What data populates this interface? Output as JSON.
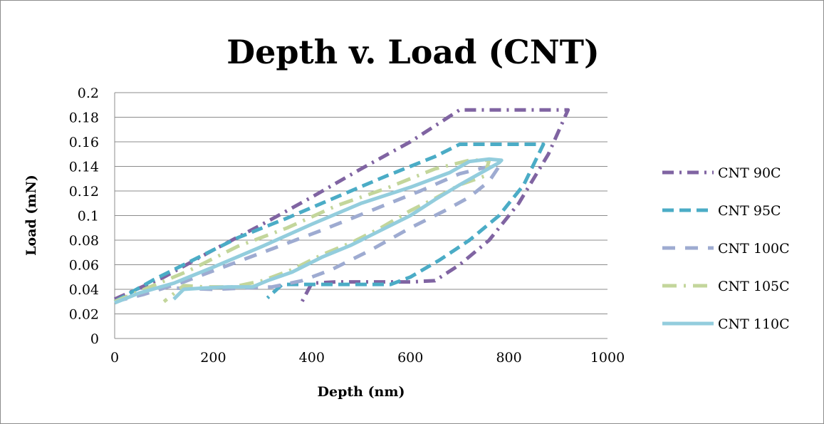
{
  "chart_data": {
    "type": "line",
    "title": "Depth v. Load (CNT)",
    "xlabel": "Depth (nm)",
    "ylabel": "Load (mN)",
    "xlim": [
      0,
      1000
    ],
    "ylim": [
      0,
      0.2
    ],
    "xticks": [
      "0",
      "200",
      "400",
      "600",
      "800",
      "1000"
    ],
    "yticks": [
      "0",
      "0.02",
      "0.04",
      "0.06",
      "0.08",
      "0.1",
      "0.12",
      "0.14",
      "0.16",
      "0.18",
      "0.2"
    ],
    "grid": "horizontal",
    "legend_position": "right",
    "series": [
      {
        "name": "CNT 90C",
        "color": "#8064a2",
        "dash": "dash-dot",
        "points": [
          [
            0,
            0.032
          ],
          [
            100,
            0.05
          ],
          [
            200,
            0.072
          ],
          [
            300,
            0.093
          ],
          [
            400,
            0.115
          ],
          [
            500,
            0.138
          ],
          [
            600,
            0.16
          ],
          [
            700,
            0.186
          ],
          [
            760,
            0.186
          ],
          [
            840,
            0.186
          ],
          [
            920,
            0.186
          ],
          [
            880,
            0.15
          ],
          [
            820,
            0.11
          ],
          [
            760,
            0.08
          ],
          [
            700,
            0.06
          ],
          [
            650,
            0.047
          ],
          [
            600,
            0.046
          ],
          [
            520,
            0.046
          ],
          [
            450,
            0.046
          ],
          [
            400,
            0.045
          ],
          [
            380,
            0.03
          ]
        ]
      },
      {
        "name": "CNT 95C",
        "color": "#4bacc6",
        "dash": "dash",
        "points": [
          [
            0,
            0.03
          ],
          [
            80,
            0.048
          ],
          [
            160,
            0.064
          ],
          [
            250,
            0.082
          ],
          [
            350,
            0.098
          ],
          [
            450,
            0.115
          ],
          [
            550,
            0.132
          ],
          [
            650,
            0.148
          ],
          [
            700,
            0.158
          ],
          [
            780,
            0.158
          ],
          [
            870,
            0.158
          ],
          [
            830,
            0.125
          ],
          [
            780,
            0.1
          ],
          [
            720,
            0.08
          ],
          [
            660,
            0.064
          ],
          [
            600,
            0.05
          ],
          [
            560,
            0.044
          ],
          [
            480,
            0.044
          ],
          [
            400,
            0.044
          ],
          [
            340,
            0.044
          ],
          [
            310,
            0.033
          ]
        ]
      },
      {
        "name": "CNT 100C",
        "color": "#9eabd1",
        "dash": "longdash",
        "points": [
          [
            0,
            0.03
          ],
          [
            60,
            0.036
          ],
          [
            140,
            0.046
          ],
          [
            220,
            0.058
          ],
          [
            320,
            0.073
          ],
          [
            420,
            0.088
          ],
          [
            520,
            0.104
          ],
          [
            620,
            0.12
          ],
          [
            700,
            0.134
          ],
          [
            750,
            0.139
          ],
          [
            780,
            0.14
          ],
          [
            760,
            0.128
          ],
          [
            720,
            0.115
          ],
          [
            670,
            0.104
          ],
          [
            600,
            0.09
          ],
          [
            520,
            0.072
          ],
          [
            440,
            0.056
          ],
          [
            380,
            0.047
          ],
          [
            320,
            0.042
          ],
          [
            260,
            0.041
          ],
          [
            200,
            0.04
          ],
          [
            120,
            0.041
          ]
        ]
      },
      {
        "name": "CNT 105C",
        "color": "#c3d69b",
        "dash": "dash-dot-long",
        "points": [
          [
            0,
            0.03
          ],
          [
            60,
            0.04
          ],
          [
            150,
            0.055
          ],
          [
            250,
            0.075
          ],
          [
            350,
            0.09
          ],
          [
            450,
            0.108
          ],
          [
            550,
            0.122
          ],
          [
            650,
            0.138
          ],
          [
            720,
            0.145
          ],
          [
            760,
            0.145
          ],
          [
            750,
            0.132
          ],
          [
            700,
            0.125
          ],
          [
            650,
            0.114
          ],
          [
            600,
            0.104
          ],
          [
            540,
            0.09
          ],
          [
            480,
            0.078
          ],
          [
            420,
            0.068
          ],
          [
            360,
            0.056
          ],
          [
            300,
            0.047
          ],
          [
            240,
            0.042
          ],
          [
            180,
            0.042
          ],
          [
            140,
            0.043
          ],
          [
            100,
            0.03
          ]
        ]
      },
      {
        "name": "CNT 110C",
        "color": "#93cddd",
        "dash": "solid",
        "points": [
          [
            0,
            0.029
          ],
          [
            50,
            0.037
          ],
          [
            120,
            0.045
          ],
          [
            200,
            0.058
          ],
          [
            300,
            0.075
          ],
          [
            400,
            0.093
          ],
          [
            500,
            0.11
          ],
          [
            600,
            0.123
          ],
          [
            680,
            0.135
          ],
          [
            720,
            0.144
          ],
          [
            760,
            0.146
          ],
          [
            785,
            0.145
          ],
          [
            780,
            0.143
          ],
          [
            740,
            0.134
          ],
          [
            700,
            0.125
          ],
          [
            650,
            0.113
          ],
          [
            600,
            0.1
          ],
          [
            540,
            0.088
          ],
          [
            480,
            0.076
          ],
          [
            420,
            0.066
          ],
          [
            360,
            0.054
          ],
          [
            310,
            0.047
          ],
          [
            280,
            0.042
          ],
          [
            230,
            0.042
          ],
          [
            180,
            0.041
          ],
          [
            140,
            0.04
          ],
          [
            120,
            0.032
          ]
        ]
      }
    ]
  }
}
